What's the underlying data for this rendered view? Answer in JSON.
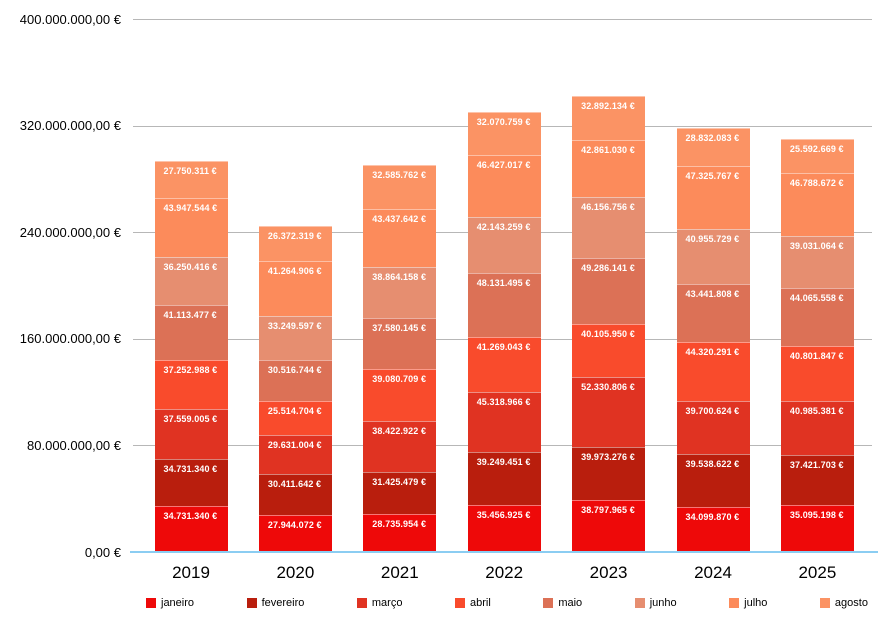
{
  "chart_data": {
    "type": "bar",
    "stacked": true,
    "title": "",
    "xlabel": "",
    "ylabel": "",
    "ylim": [
      0,
      400000000
    ],
    "grid": true,
    "legend_position": "bottom",
    "value_suffix": " €",
    "grid_color": "#b7b7b7",
    "axis_line_color": "#8bcdf2",
    "categories": [
      "2019",
      "2020",
      "2021",
      "2022",
      "2023",
      "2024",
      "2025"
    ],
    "y_ticks": [
      "400.000.000,00 €",
      "320.000.000,00 €",
      "240.000.000,00 €",
      "160.000.000,00 €",
      "80.000.000,00 €",
      "0,00 €"
    ],
    "series": [
      {
        "name": "janeiro",
        "color": "#ee0909",
        "values": [
          34731340,
          27944072,
          28735954,
          35456925,
          38797965,
          34099870,
          35095198
        ]
      },
      {
        "name": "fevereiro",
        "color": "#b91e0d",
        "values": [
          34731340,
          30411642,
          31425479,
          39249451,
          39973276,
          39538622,
          37421703
        ]
      },
      {
        "name": "março",
        "color": "#e03322",
        "values": [
          37559005,
          29631004,
          38422922,
          45318966,
          52330806,
          39700624,
          40985381
        ]
      },
      {
        "name": "abril",
        "color": "#f94b2c",
        "values": [
          37252988,
          25514704,
          39080709,
          41269043,
          40105950,
          44320291,
          40801847
        ]
      },
      {
        "name": "maio",
        "color": "#dc7156",
        "values": [
          41113477,
          30516744,
          37580145,
          48131495,
          49286141,
          43441808,
          44065558
        ]
      },
      {
        "name": "junho",
        "color": "#e68e70",
        "values": [
          36250416,
          33249597,
          38864158,
          42143259,
          46156756,
          40955729,
          39031064
        ]
      },
      {
        "name": "julho",
        "color": "#fc8b5b",
        "values": [
          43947544,
          41264906,
          43437642,
          46427017,
          42861030,
          47325767,
          46788672
        ]
      },
      {
        "name": "agosto",
        "color": "#fb9364",
        "values": [
          27750311,
          26372319,
          32585762,
          32070759,
          32892134,
          28832083,
          25592669
        ]
      }
    ]
  }
}
